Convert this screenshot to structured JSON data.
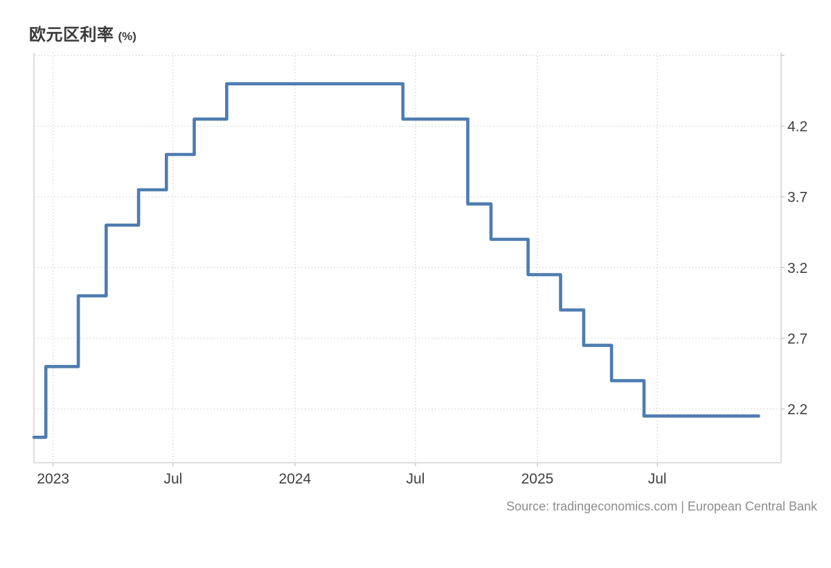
{
  "header": {
    "title": "欧元区利率",
    "unit": "(%)"
  },
  "footer": {
    "source": "Source: tradingeconomics.com | European Central Bank"
  },
  "colors": {
    "line": "#4d7cb0",
    "grid": "#d9d9d9",
    "border": "#cbcbcb",
    "axis_text": "#404040",
    "title_text": "#3a3a3a",
    "source_text": "#8c8c8c"
  },
  "chart_data": {
    "type": "line",
    "subtype": "step-after",
    "title": "欧元区利率 (%)",
    "xlabel": "",
    "ylabel": "",
    "legend": "none",
    "grid": "dotted",
    "x_domain": [
      "2022-12-03",
      "2026-01-04"
    ],
    "ylim": [
      1.82,
      4.72
    ],
    "y_ticks": {
      "values": [
        4.7,
        4.2,
        3.7,
        3.2,
        2.7,
        2.2
      ],
      "labels": [
        "",
        "4.2",
        "3.7",
        "3.2",
        "2.7",
        "2.2"
      ]
    },
    "x_ticks": [
      {
        "date": "2023-01-01",
        "label": "2023"
      },
      {
        "date": "2023-07-01",
        "label": "Jul"
      },
      {
        "date": "2024-01-01",
        "label": "2024"
      },
      {
        "date": "2024-07-01",
        "label": "Jul"
      },
      {
        "date": "2025-01-01",
        "label": "2025"
      },
      {
        "date": "2025-07-01",
        "label": "Jul"
      }
    ],
    "series": [
      {
        "name": "欧元区利率",
        "color": "#4d7cb0",
        "points": [
          [
            "2022-12-03",
            2.0
          ],
          [
            "2022-12-21",
            2.5
          ],
          [
            "2023-02-08",
            3.0
          ],
          [
            "2023-03-22",
            3.5
          ],
          [
            "2023-05-10",
            3.75
          ],
          [
            "2023-06-21",
            4.0
          ],
          [
            "2023-08-02",
            4.25
          ],
          [
            "2023-09-20",
            4.5
          ],
          [
            "2024-06-12",
            4.25
          ],
          [
            "2024-09-18",
            3.65
          ],
          [
            "2024-10-23",
            3.4
          ],
          [
            "2024-12-18",
            3.15
          ],
          [
            "2025-02-05",
            2.9
          ],
          [
            "2025-03-12",
            2.65
          ],
          [
            "2025-04-23",
            2.4
          ],
          [
            "2025-06-11",
            2.15
          ]
        ],
        "end_date": "2025-12-01"
      }
    ]
  }
}
